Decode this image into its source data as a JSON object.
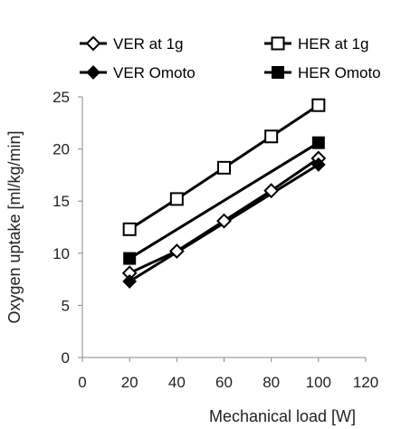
{
  "chart_data": {
    "type": "line",
    "xlabel": "Mechanical load [W]",
    "ylabel": "Oxygen uptake [ml/kg/min]",
    "xlim": [
      0,
      120
    ],
    "ylim": [
      0,
      25
    ],
    "xticks": [
      0,
      20,
      40,
      60,
      80,
      100,
      120
    ],
    "yticks": [
      0,
      5,
      10,
      15,
      20,
      25
    ],
    "grid": false,
    "legend_position": "top",
    "series": [
      {
        "name": "VER at 1g",
        "marker": "diamond-open",
        "x": [
          20,
          40,
          60,
          80,
          100
        ],
        "values": [
          8.1,
          10.2,
          13.1,
          16.0,
          19.1
        ]
      },
      {
        "name": "HER at 1g",
        "marker": "square-open",
        "x": [
          20,
          40,
          60,
          80,
          100
        ],
        "values": [
          12.3,
          15.2,
          18.2,
          21.2,
          24.2
        ]
      },
      {
        "name": "VER Omoto",
        "marker": "diamond-filled",
        "x": [
          20,
          100
        ],
        "values": [
          7.3,
          18.5
        ]
      },
      {
        "name": "HER Omoto",
        "marker": "square-filled",
        "x": [
          20,
          100
        ],
        "values": [
          9.5,
          20.6
        ]
      }
    ]
  }
}
